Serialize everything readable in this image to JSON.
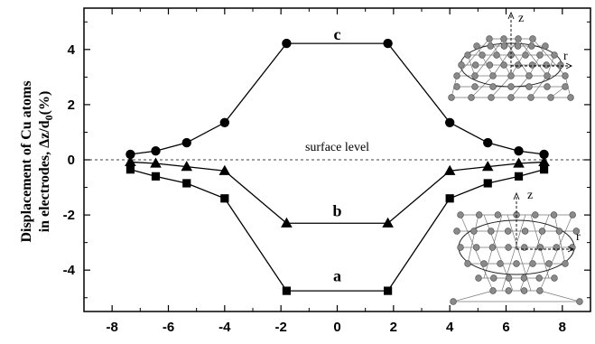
{
  "chart_data": {
    "type": "line",
    "title": "",
    "xlabel": "",
    "ylabel_line1": "Displacement of Cu atoms",
    "ylabel_line2_prefix": "in electrodes, Δz/d",
    "ylabel_line2_sub": "0",
    "ylabel_line2_suffix": "(%)",
    "xlim": [
      -9,
      9
    ],
    "ylim": [
      -5.5,
      5.5
    ],
    "x_ticks": [
      -8,
      -6,
      -4,
      -2,
      0,
      2,
      4,
      6,
      8
    ],
    "x_tick_labels": [
      "-8",
      "-6",
      "-4",
      "-2",
      "0",
      "2",
      "4",
      "6",
      "8"
    ],
    "y_ticks": [
      -4,
      -2,
      0,
      2,
      4
    ],
    "y_tick_labels": [
      "-4",
      "-2",
      "0",
      "2",
      "4"
    ],
    "grid": false,
    "reference_line": {
      "y": 0,
      "style": "dashed",
      "label": "surface level"
    },
    "series": [
      {
        "name": "c",
        "marker": "circle",
        "x": [
          -7.35,
          -6.45,
          -5.35,
          -4.0,
          -1.8,
          1.8,
          4.0,
          5.35,
          6.45,
          7.35
        ],
        "y": [
          0.2,
          0.32,
          0.62,
          1.35,
          4.22,
          4.22,
          1.35,
          0.62,
          0.32,
          0.2
        ]
      },
      {
        "name": "b",
        "marker": "triangle",
        "x": [
          -7.35,
          -6.45,
          -5.35,
          -4.0,
          -1.8,
          1.8,
          4.0,
          5.35,
          6.45,
          7.35
        ],
        "y": [
          -0.08,
          -0.13,
          -0.25,
          -0.4,
          -2.3,
          -2.3,
          -0.4,
          -0.25,
          -0.13,
          -0.08
        ]
      },
      {
        "name": "a",
        "marker": "square",
        "x": [
          -7.35,
          -6.45,
          -5.35,
          -4.0,
          -1.8,
          1.8,
          4.0,
          5.35,
          6.45,
          7.35
        ],
        "y": [
          -0.35,
          -0.6,
          -0.85,
          -1.4,
          -4.75,
          -4.75,
          -1.4,
          -0.85,
          -0.6,
          -0.35
        ]
      }
    ],
    "curve_labels": [
      {
        "text": "c",
        "x": 0.0,
        "y": 4.55
      },
      {
        "text": "b",
        "x": 0.0,
        "y": -1.85
      },
      {
        "text": "a",
        "x": 0.0,
        "y": -4.2
      }
    ],
    "insets": [
      {
        "axis_labels": [
          "z",
          "r"
        ]
      },
      {
        "axis_labels": [
          "z",
          "r"
        ]
      }
    ]
  }
}
